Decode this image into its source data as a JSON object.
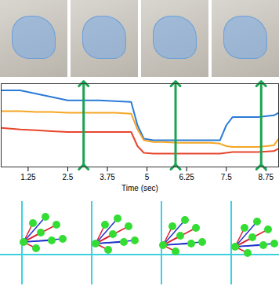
{
  "chart_data": {
    "type": "line",
    "x_label": "Time (sec)",
    "x": [
      0.4,
      1.0,
      1.5,
      2.0,
      2.5,
      3.0,
      3.5,
      4.0,
      4.5,
      4.7,
      4.9,
      5.2,
      5.5,
      6.0,
      6.5,
      7.0,
      7.3,
      7.5,
      7.7,
      8.0,
      8.5,
      9.0,
      9.15
    ],
    "series": [
      {
        "color": "#2b7bd6",
        "values": [
          112,
          112,
          108,
          104,
          100,
          100,
          100,
          99,
          98,
          70,
          54,
          52,
          52,
          52,
          52,
          52,
          52,
          70,
          80,
          80,
          80,
          82,
          85
        ]
      },
      {
        "color": "#f5a623",
        "values": [
          87,
          87,
          86,
          86,
          85,
          85,
          85,
          85,
          84,
          65,
          52,
          50,
          50,
          49,
          49,
          49,
          48,
          45,
          44,
          44,
          44,
          46,
          54
        ]
      },
      {
        "color": "#e8452c",
        "values": [
          67,
          65,
          64,
          63,
          62,
          62,
          62,
          62,
          62,
          45,
          37,
          36,
          36,
          36,
          36,
          36,
          36,
          37,
          38,
          38,
          38,
          39,
          42
        ]
      }
    ],
    "arrows": [
      3.0,
      5.9,
      8.6
    ],
    "arrow_color": "#1aa350",
    "xlim": [
      0.4,
      9.15
    ],
    "xticks": [
      1.25,
      2.5,
      3.75,
      5,
      6.25,
      7.5,
      8.75
    ],
    "ylim": [
      20,
      120
    ],
    "yticks": [],
    "tick_labels": "x",
    "grid": false
  }
}
